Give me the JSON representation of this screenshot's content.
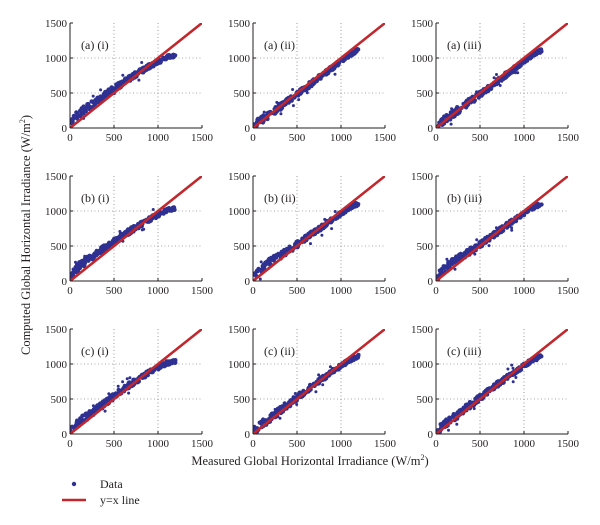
{
  "figure": {
    "xlabel_main": "Measured Global Horizontal Irradiance (W/m",
    "xlabel_sup": "2",
    "xlabel_end": ")",
    "ylabel_main": "Computed Global Horizontal Irradiance (W/m",
    "ylabel_sup": "2",
    "ylabel_end": ")",
    "legend": [
      {
        "label": "Data",
        "color": "#2e3192",
        "marker": "dot"
      },
      {
        "label": "y=x line",
        "color": "#c1272d",
        "marker": "line"
      }
    ],
    "colors": {
      "data": "#2e3192",
      "line": "#c1272d",
      "axis": "#231f20",
      "grid": "#555555"
    }
  },
  "chart_data": [
    {
      "type": "scatter",
      "panel": "(a) (i)",
      "xlim": [
        0,
        1500
      ],
      "ylim": [
        0,
        1500
      ],
      "xticks": [
        0,
        500,
        1000,
        1500
      ],
      "yticks": [
        0,
        500,
        1000,
        1500
      ],
      "grid": true,
      "series": [
        {
          "name": "Data",
          "x": [
            0,
            100,
            200,
            300,
            500,
            700,
            900,
            1100,
            1200
          ],
          "y": [
            80,
            200,
            300,
            380,
            560,
            730,
            880,
            1010,
            1040
          ]
        },
        {
          "name": "y=x line",
          "x": [
            0,
            1500
          ],
          "y": [
            0,
            1500
          ]
        }
      ]
    },
    {
      "type": "scatter",
      "panel": "(a) (ii)",
      "xlim": [
        0,
        1500
      ],
      "ylim": [
        0,
        1500
      ],
      "xticks": [
        0,
        500,
        1000,
        1500
      ],
      "yticks": [
        0,
        500,
        1000,
        1500
      ],
      "grid": true,
      "series": [
        {
          "name": "Data",
          "x": [
            0,
            100,
            200,
            300,
            500,
            700,
            900,
            1100,
            1200
          ],
          "y": [
            30,
            120,
            210,
            300,
            480,
            670,
            860,
            1050,
            1110
          ]
        },
        {
          "name": "y=x line",
          "x": [
            0,
            1500
          ],
          "y": [
            0,
            1500
          ]
        }
      ]
    },
    {
      "type": "scatter",
      "panel": "(a) (iii)",
      "xlim": [
        0,
        1500
      ],
      "ylim": [
        0,
        1500
      ],
      "xticks": [
        0,
        500,
        1000,
        1500
      ],
      "yticks": [
        0,
        500,
        1000,
        1500
      ],
      "grid": true,
      "series": [
        {
          "name": "Data",
          "x": [
            0,
            100,
            200,
            300,
            500,
            700,
            900,
            1100,
            1200
          ],
          "y": [
            30,
            120,
            210,
            300,
            480,
            670,
            860,
            1050,
            1110
          ]
        },
        {
          "name": "y=x line",
          "x": [
            0,
            1500
          ],
          "y": [
            0,
            1500
          ]
        }
      ]
    },
    {
      "type": "scatter",
      "panel": "(b) (i)",
      "xlim": [
        0,
        1500
      ],
      "ylim": [
        0,
        1500
      ],
      "xticks": [
        0,
        500,
        1000,
        1500
      ],
      "yticks": [
        0,
        500,
        1000,
        1500
      ],
      "grid": true,
      "series": [
        {
          "name": "Data",
          "x": [
            0,
            100,
            200,
            300,
            500,
            700,
            900,
            1100,
            1200
          ],
          "y": [
            60,
            210,
            310,
            390,
            560,
            730,
            880,
            1010,
            1040
          ]
        },
        {
          "name": "y=x line",
          "x": [
            0,
            1500
          ],
          "y": [
            0,
            1500
          ]
        }
      ]
    },
    {
      "type": "scatter",
      "panel": "(b) (ii)",
      "xlim": [
        0,
        1500
      ],
      "ylim": [
        0,
        1500
      ],
      "xticks": [
        0,
        500,
        1000,
        1500
      ],
      "yticks": [
        0,
        500,
        1000,
        1500
      ],
      "grid": true,
      "series": [
        {
          "name": "Data",
          "x": [
            0,
            100,
            200,
            300,
            500,
            700,
            900,
            1100,
            1200
          ],
          "y": [
            40,
            180,
            280,
            350,
            520,
            700,
            880,
            1050,
            1110
          ]
        },
        {
          "name": "y=x line",
          "x": [
            0,
            1500
          ],
          "y": [
            0,
            1500
          ]
        }
      ]
    },
    {
      "type": "scatter",
      "panel": "(b) (iii)",
      "xlim": [
        0,
        1500
      ],
      "ylim": [
        0,
        1500
      ],
      "xticks": [
        0,
        500,
        1000,
        1500
      ],
      "yticks": [
        0,
        500,
        1000,
        1500
      ],
      "grid": true,
      "series": [
        {
          "name": "Data",
          "x": [
            0,
            100,
            200,
            300,
            500,
            700,
            900,
            1100,
            1200
          ],
          "y": [
            40,
            180,
            280,
            350,
            520,
            700,
            880,
            1050,
            1110
          ]
        },
        {
          "name": "y=x line",
          "x": [
            0,
            1500
          ],
          "y": [
            0,
            1500
          ]
        }
      ]
    },
    {
      "type": "scatter",
      "panel": "(c) (i)",
      "xlim": [
        0,
        1500
      ],
      "ylim": [
        0,
        1500
      ],
      "xticks": [
        0,
        500,
        1000,
        1500
      ],
      "yticks": [
        0,
        500,
        1000,
        1500
      ],
      "grid": true,
      "series": [
        {
          "name": "Data",
          "x": [
            0,
            100,
            200,
            300,
            500,
            700,
            900,
            1100,
            1200
          ],
          "y": [
            70,
            170,
            260,
            350,
            540,
            720,
            880,
            1010,
            1040
          ]
        },
        {
          "name": "y=x line",
          "x": [
            0,
            1500
          ],
          "y": [
            0,
            1500
          ]
        }
      ]
    },
    {
      "type": "scatter",
      "panel": "(c) (ii)",
      "xlim": [
        0,
        1500
      ],
      "ylim": [
        0,
        1500
      ],
      "xticks": [
        0,
        500,
        1000,
        1500
      ],
      "yticks": [
        0,
        500,
        1000,
        1500
      ],
      "grid": true,
      "series": [
        {
          "name": "Data",
          "x": [
            0,
            100,
            200,
            300,
            500,
            700,
            900,
            1100,
            1200
          ],
          "y": [
            40,
            140,
            230,
            330,
            520,
            710,
            890,
            1060,
            1110
          ]
        },
        {
          "name": "y=x line",
          "x": [
            0,
            1500
          ],
          "y": [
            0,
            1500
          ]
        }
      ]
    },
    {
      "type": "scatter",
      "panel": "(c) (iii)",
      "xlim": [
        0,
        1500
      ],
      "ylim": [
        0,
        1500
      ],
      "xticks": [
        0,
        500,
        1000,
        1500
      ],
      "yticks": [
        0,
        500,
        1000,
        1500
      ],
      "grid": true,
      "series": [
        {
          "name": "Data",
          "x": [
            0,
            100,
            200,
            300,
            500,
            700,
            900,
            1100,
            1200
          ],
          "y": [
            40,
            140,
            230,
            330,
            520,
            710,
            890,
            1060,
            1110
          ]
        },
        {
          "name": "y=x line",
          "x": [
            0,
            1500
          ],
          "y": [
            0,
            1500
          ]
        }
      ]
    }
  ]
}
